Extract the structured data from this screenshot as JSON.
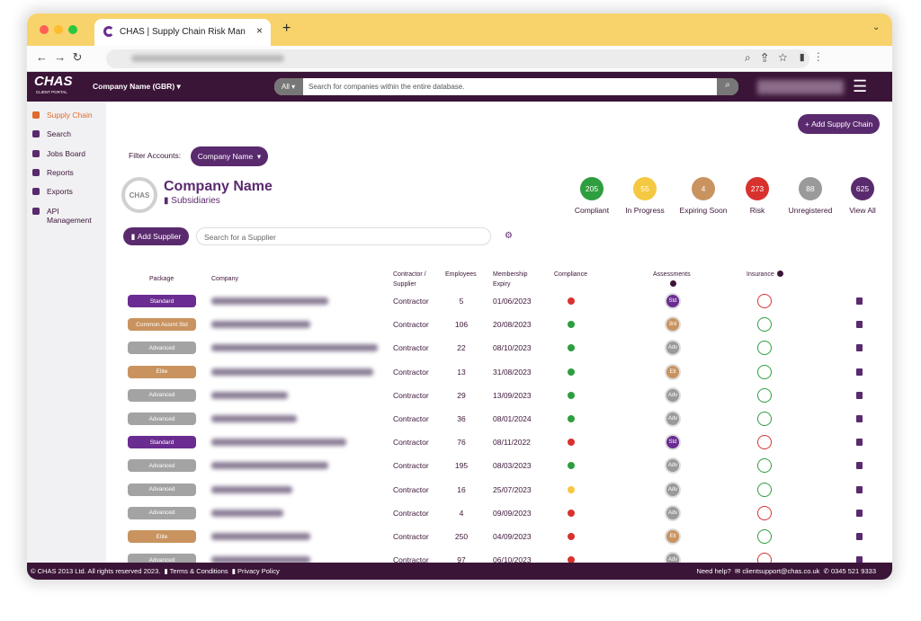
{
  "browser": {
    "tab_title": "CHAS | Supply Chain Risk Man"
  },
  "header": {
    "logo": "CHAS",
    "logo_sub": "CLIENT PORTAL",
    "company_selector": "Company Name (GBR)",
    "search_scope": "All",
    "search_placeholder": "Search for companies within the entire database."
  },
  "sidebar": {
    "items": [
      "Supply Chain",
      "Search",
      "Jobs Board",
      "Reports",
      "Exports",
      "API Management"
    ]
  },
  "main": {
    "add_supply_chain": "Add Supply Chain",
    "filter_label": "Filter Accounts:",
    "filter_value": "Company Name",
    "badge": "CHAS",
    "company_name": "Company Name",
    "subsidiaries": "Subsidiaries",
    "add_supplier": "Add Supplier",
    "supplier_search_placeholder": "Search for a Supplier",
    "stats": [
      {
        "value": 205,
        "label": "Compliant",
        "color": "#2e9e3e"
      },
      {
        "value": 55,
        "label": "In Progress",
        "color": "#f5c842"
      },
      {
        "value": 4,
        "label": "Expiring Soon",
        "color": "#c9935f"
      },
      {
        "value": 273,
        "label": "Risk",
        "color": "#d8322f"
      },
      {
        "value": 88,
        "label": "Unregistered",
        "color": "#9a9a9a"
      },
      {
        "value": 625,
        "label": "View All",
        "color": "#5a2a6e"
      }
    ]
  },
  "table": {
    "columns": [
      "Package",
      "Company",
      "Contractor / Supplier",
      "Employees",
      "Membership Expiry",
      "Compliance",
      "Assessments",
      "Insurance"
    ],
    "rows": [
      {
        "package": "Standard",
        "package_color": "#6a2c91",
        "type": "Contractor",
        "employees": 5,
        "expiry": "01/06/2023",
        "compliance_color": "#d8322f",
        "assessment": "Std",
        "assessment_color": "#6a2c91",
        "insurance_color": "#d8322f"
      },
      {
        "package": "Common Assmt Std",
        "package_color": "#c9935f",
        "type": "Contractor",
        "employees": 106,
        "expiry": "20/08/2023",
        "compliance_color": "#2e9e3e",
        "assessment": "3rd",
        "assessment_color": "#c9935f",
        "insurance_color": "#2e9e3e"
      },
      {
        "package": "Advanced",
        "package_color": "#a3a3a3",
        "type": "Contractor",
        "employees": 22,
        "expiry": "08/10/2023",
        "compliance_color": "#2e9e3e",
        "assessment": "Adv",
        "assessment_color": "#9a9a9a",
        "insurance_color": "#2e9e3e"
      },
      {
        "package": "Elite",
        "package_color": "#c9935f",
        "type": "Contractor",
        "employees": 13,
        "expiry": "31/08/2023",
        "compliance_color": "#2e9e3e",
        "assessment": "Elt",
        "assessment_color": "#c9935f",
        "insurance_color": "#2e9e3e"
      },
      {
        "package": "Advanced",
        "package_color": "#a3a3a3",
        "type": "Contractor",
        "employees": 29,
        "expiry": "13/09/2023",
        "compliance_color": "#2e9e3e",
        "assessment": "Adv",
        "assessment_color": "#9a9a9a",
        "insurance_color": "#2e9e3e"
      },
      {
        "package": "Advanced",
        "package_color": "#a3a3a3",
        "type": "Contractor",
        "employees": 36,
        "expiry": "08/01/2024",
        "compliance_color": "#2e9e3e",
        "assessment": "Adv",
        "assessment_color": "#9a9a9a",
        "insurance_color": "#2e9e3e"
      },
      {
        "package": "Standard",
        "package_color": "#6a2c91",
        "type": "Contractor",
        "employees": 76,
        "expiry": "08/11/2022",
        "compliance_color": "#d8322f",
        "assessment": "Std",
        "assessment_color": "#6a2c91",
        "insurance_color": "#d8322f"
      },
      {
        "package": "Advanced",
        "package_color": "#a3a3a3",
        "type": "Contractor",
        "employees": 195,
        "expiry": "08/03/2023",
        "compliance_color": "#2e9e3e",
        "assessment": "Adv",
        "assessment_color": "#9a9a9a",
        "insurance_color": "#2e9e3e"
      },
      {
        "package": "Advanced",
        "package_color": "#a3a3a3",
        "type": "Contractor",
        "employees": 16,
        "expiry": "25/07/2023",
        "compliance_color": "#f5c842",
        "assessment": "Adv",
        "assessment_color": "#9a9a9a",
        "insurance_color": "#2e9e3e"
      },
      {
        "package": "Advanced",
        "package_color": "#a3a3a3",
        "type": "Contractor",
        "employees": 4,
        "expiry": "09/09/2023",
        "compliance_color": "#d8322f",
        "assessment": "Adv",
        "assessment_color": "#9a9a9a",
        "insurance_color": "#d8322f"
      },
      {
        "package": "Elite",
        "package_color": "#c9935f",
        "type": "Contractor",
        "employees": 250,
        "expiry": "04/09/2023",
        "compliance_color": "#d8322f",
        "assessment": "Elt",
        "assessment_color": "#c9935f",
        "insurance_color": "#2e9e3e"
      },
      {
        "package": "Advanced",
        "package_color": "#a3a3a3",
        "type": "Contractor",
        "employees": 97,
        "expiry": "06/10/2023",
        "compliance_color": "#d8322f",
        "assessment": "Adv",
        "assessment_color": "#9a9a9a",
        "insurance_color": "#d8322f"
      }
    ]
  },
  "footer": {
    "copyright": "© CHAS 2013 Ltd. All rights reserved 2023.",
    "terms": "Terms & Conditions",
    "privacy": "Privacy Policy",
    "help": "Need help?",
    "email": "clientsupport@chas.co.uk",
    "phone": "0345 521 9333"
  }
}
